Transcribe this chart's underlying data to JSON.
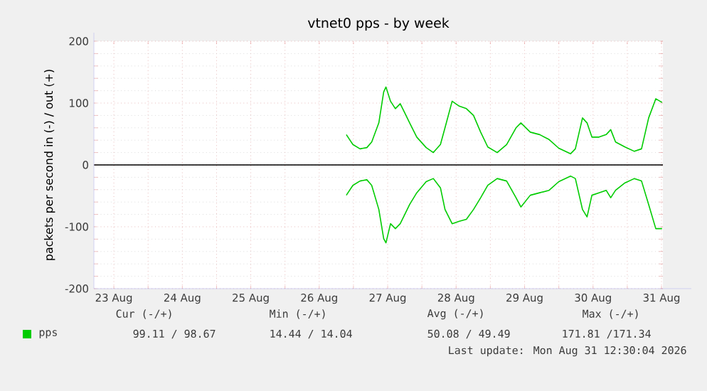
{
  "chart_data": {
    "type": "line",
    "title": "vtnet0 pps - by week",
    "ylabel": "packets per second in (-) / out (+)",
    "x": [
      "2026-08-26T21:30",
      "2026-08-26T23:48",
      "2026-08-27T02:18",
      "2026-08-27T04:42",
      "2026-08-27T06:24",
      "2026-08-27T08:54",
      "2026-08-27T10:36",
      "2026-08-27T11:24",
      "2026-08-27T13:00",
      "2026-08-27T14:42",
      "2026-08-27T16:24",
      "2026-08-27T18:00",
      "2026-08-27T19:42",
      "2026-08-27T22:12",
      "2026-08-28T01:30",
      "2026-08-28T04:00",
      "2026-08-28T06:30",
      "2026-08-28T08:06",
      "2026-08-28T10:36",
      "2026-08-28T13:06",
      "2026-08-28T15:36",
      "2026-08-28T18:06",
      "2026-08-28T20:36",
      "2026-08-28T23:06",
      "2026-08-29T02:24",
      "2026-08-29T05:42",
      "2026-08-29T09:00",
      "2026-08-29T10:42",
      "2026-08-29T14:00",
      "2026-08-29T17:18",
      "2026-08-29T20:36",
      "2026-08-30T00:00",
      "2026-08-30T04:06",
      "2026-08-30T05:48",
      "2026-08-30T08:18",
      "2026-08-30T09:54",
      "2026-08-30T11:36",
      "2026-08-30T14:06",
      "2026-08-30T16:36",
      "2026-08-30T18:12",
      "2026-08-30T19:54",
      "2026-08-30T23:12",
      "2026-08-31T02:30",
      "2026-08-31T05:00",
      "2026-08-31T07:30",
      "2026-08-31T10:00",
      "2026-08-31T12:12"
    ],
    "series": [
      {
        "name": "pps",
        "color": "#00cc00",
        "values": [
          49,
          33,
          26,
          28,
          37,
          68,
          118,
          126,
          103,
          91,
          99,
          84,
          68,
          45,
          28,
          20,
          33,
          60,
          103,
          95,
          91,
          80,
          53,
          29,
          20,
          33,
          60,
          68,
          53,
          49,
          41,
          27,
          18,
          26,
          76,
          68,
          45,
          45,
          49,
          57,
          37,
          29,
          22,
          26,
          76,
          107,
          101
        ]
      },
      {
        "color": "#00cc00",
        "values": [
          -49,
          -33,
          -26,
          -24,
          -33,
          -72,
          -119,
          -126,
          -95,
          -103,
          -95,
          -80,
          -64,
          -45,
          -27,
          -22,
          -37,
          -72,
          -95,
          -91,
          -88,
          -72,
          -53,
          -33,
          -22,
          -26,
          -53,
          -68,
          -49,
          -45,
          -41,
          -27,
          -18,
          -22,
          -72,
          -84,
          -49,
          -45,
          -41,
          -53,
          -41,
          -29,
          -22,
          -26,
          -64,
          -103,
          -103
        ]
      }
    ],
    "xlim": [
      "2026-08-23T05:00",
      "2026-08-31T12:30"
    ],
    "xticks": [
      {
        "value": "2026-08-23T12:00",
        "label": "23 Aug"
      },
      {
        "value": "2026-08-24T00:00",
        "label": null
      },
      {
        "value": "2026-08-24T12:00",
        "label": "24 Aug"
      },
      {
        "value": "2026-08-25T00:00",
        "label": null
      },
      {
        "value": "2026-08-25T12:00",
        "label": "25 Aug"
      },
      {
        "value": "2026-08-26T00:00",
        "label": null
      },
      {
        "value": "2026-08-26T12:00",
        "label": "26 Aug"
      },
      {
        "value": "2026-08-27T00:00",
        "label": null
      },
      {
        "value": "2026-08-27T12:00",
        "label": "27 Aug"
      },
      {
        "value": "2026-08-28T00:00",
        "label": null
      },
      {
        "value": "2026-08-28T12:00",
        "label": "28 Aug"
      },
      {
        "value": "2026-08-29T00:00",
        "label": null
      },
      {
        "value": "2026-08-29T12:00",
        "label": "29 Aug"
      },
      {
        "value": "2026-08-30T00:00",
        "label": null
      },
      {
        "value": "2026-08-30T12:00",
        "label": "30 Aug"
      },
      {
        "value": "2026-08-31T00:00",
        "label": null
      },
      {
        "value": "2026-08-31T12:00",
        "label": "31 Aug"
      }
    ],
    "ylim": [
      -200,
      200
    ],
    "yticks": [
      -200,
      -100,
      0,
      100,
      200
    ],
    "ref_lines": [
      {
        "axis": "y",
        "value": 0,
        "color": "#000000"
      }
    ],
    "grid": true,
    "legend": "bottom",
    "annotations": [
      "Cur (-/+)",
      "Min (-/+)",
      "Avg (-/+)",
      "Max (-/+)",
      "99.11 / 98.67",
      "14.44 / 14.04",
      "50.08 / 49.49",
      "171.81 /171.34",
      "Last update: Mon Aug 31 12:30:04 2026"
    ]
  }
}
